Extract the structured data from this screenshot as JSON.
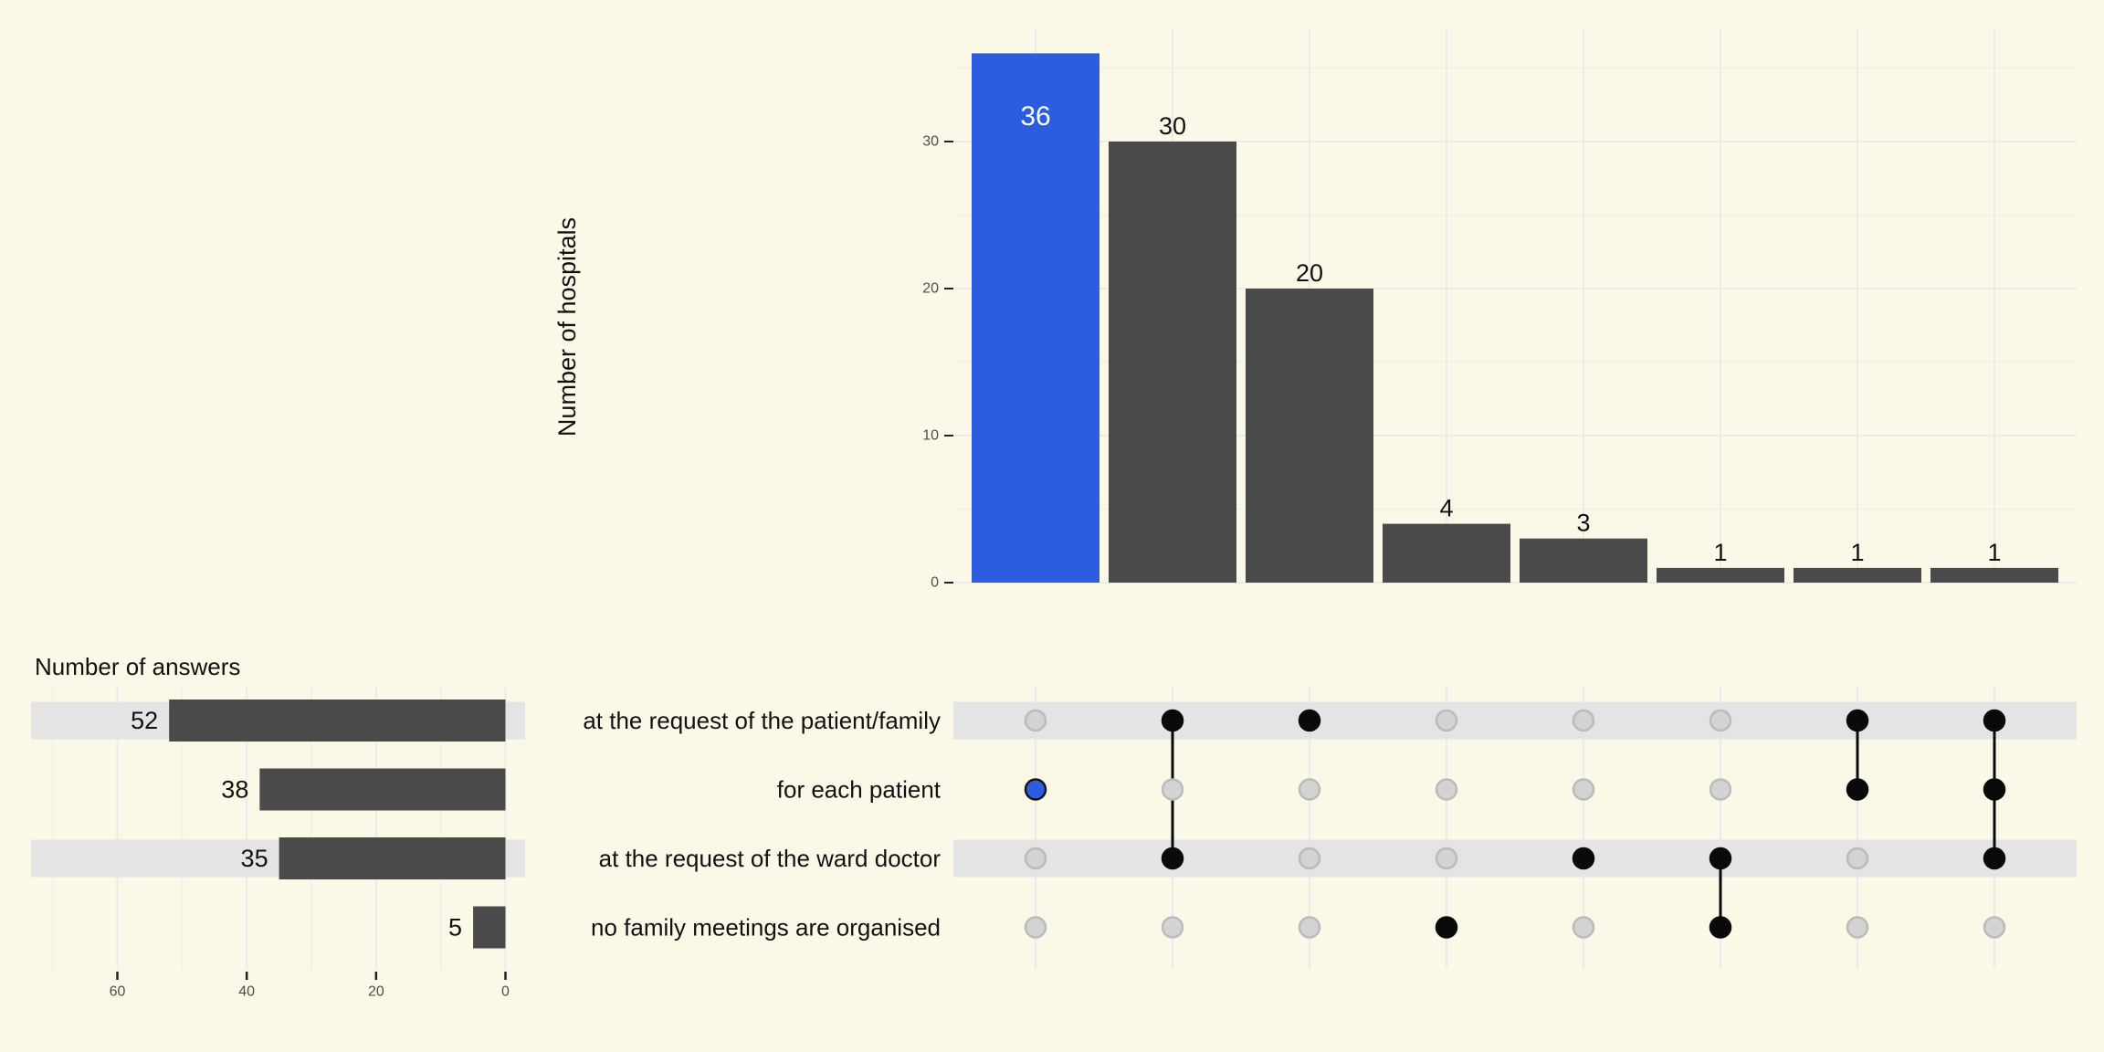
{
  "colors": {
    "background": "#fcf8e7",
    "bar_dark": "#4a4a4a",
    "highlight_blue": "#2b5dde",
    "stripe": "#e4e4e4",
    "grid_major": "#ebebeb",
    "grid_minor": "#f2f0e8",
    "dot_inactive_fill": "#d3d3d3",
    "dot_inactive_border": "#bbbbbb",
    "dot_active": "#0a0a0a",
    "tick_text": "#4d4d4d",
    "tick_mark": "#222222",
    "text": "#111111",
    "bar_label_inside": "#ffffff"
  },
  "chart_data": {
    "type": "upset",
    "intersection_bars": {
      "type": "bar",
      "ylabel": "Number of hospitals",
      "values": [
        36,
        30,
        20,
        4,
        3,
        1,
        1,
        1
      ],
      "bar_labels": [
        "36",
        "30",
        "20",
        "4",
        "3",
        "1",
        "1",
        "1"
      ],
      "yticks": [
        0,
        10,
        20,
        30
      ],
      "ylim": [
        0,
        37.6
      ],
      "grid": true,
      "highlighted_bar_index": 0,
      "legend_position": "none"
    },
    "set_size_bars": {
      "type": "bar",
      "orientation": "horizontal-reversed",
      "title": "Number of answers",
      "categories": [
        "at the request of the patient/family",
        "for each patient",
        "at the request of the ward doctor",
        "no family meetings are organised"
      ],
      "values": [
        52,
        38,
        35,
        5
      ],
      "bar_labels": [
        "52",
        "38",
        "35",
        "5"
      ],
      "xticks": [
        60,
        40,
        20,
        0
      ],
      "xlim": [
        73,
        -3
      ],
      "grid": true
    },
    "membership_matrix": {
      "rows": [
        "at the request of the patient/family",
        "for each patient",
        "at the request of the ward doctor",
        "no family meetings are organised"
      ],
      "striped_row_indexes": [
        0,
        2
      ],
      "columns": [
        {
          "member_rows": [
            1
          ],
          "size": 36,
          "highlighted": true
        },
        {
          "member_rows": [
            0,
            2
          ],
          "size": 30,
          "highlighted": false
        },
        {
          "member_rows": [
            0
          ],
          "size": 20,
          "highlighted": false
        },
        {
          "member_rows": [
            3
          ],
          "size": 4,
          "highlighted": false
        },
        {
          "member_rows": [
            2
          ],
          "size": 3,
          "highlighted": false
        },
        {
          "member_rows": [
            2,
            3
          ],
          "size": 1,
          "highlighted": false
        },
        {
          "member_rows": [
            0,
            1
          ],
          "size": 1,
          "highlighted": false
        },
        {
          "member_rows": [
            0,
            1,
            2
          ],
          "size": 1,
          "highlighted": false
        }
      ]
    }
  }
}
